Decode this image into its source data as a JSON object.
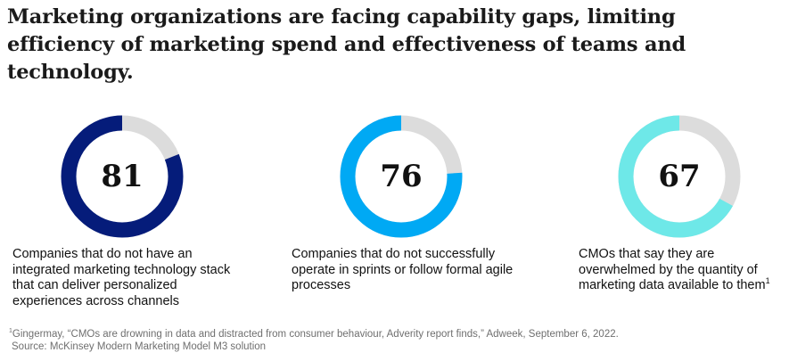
{
  "title": "Marketing organizations are facing capability gaps, limiting efficiency of marketing spend and effectiveness of teams and technology.",
  "chart_data": {
    "type": "pie",
    "max": 100,
    "track_color": "#dcdcdc",
    "items": [
      {
        "value": 81,
        "value_label": "81",
        "color": "#051c7a",
        "caption": "Companies that do not have an integrated marketing technology stack that can deliver personalized experiences across channels",
        "footnote_marker": ""
      },
      {
        "value": 76,
        "value_label": "76",
        "color": "#00a9f4",
        "caption": "Companies that do not successfully operate in sprints or follow formal agile processes",
        "footnote_marker": ""
      },
      {
        "value": 67,
        "value_label": "67",
        "color": "#6ee8e8",
        "caption": "CMOs that say they are overwhelmed by the quantity of marketing data available to them",
        "footnote_marker": "1"
      }
    ]
  },
  "footnote": {
    "marker": "1",
    "text": "Gingermay, “CMOs are drowning in data and distracted from consumer behaviour, Adverity report finds,” Adweek, September 6, 2022.",
    "source": "Source: McKinsey Modern Marketing Model M3 solution"
  }
}
